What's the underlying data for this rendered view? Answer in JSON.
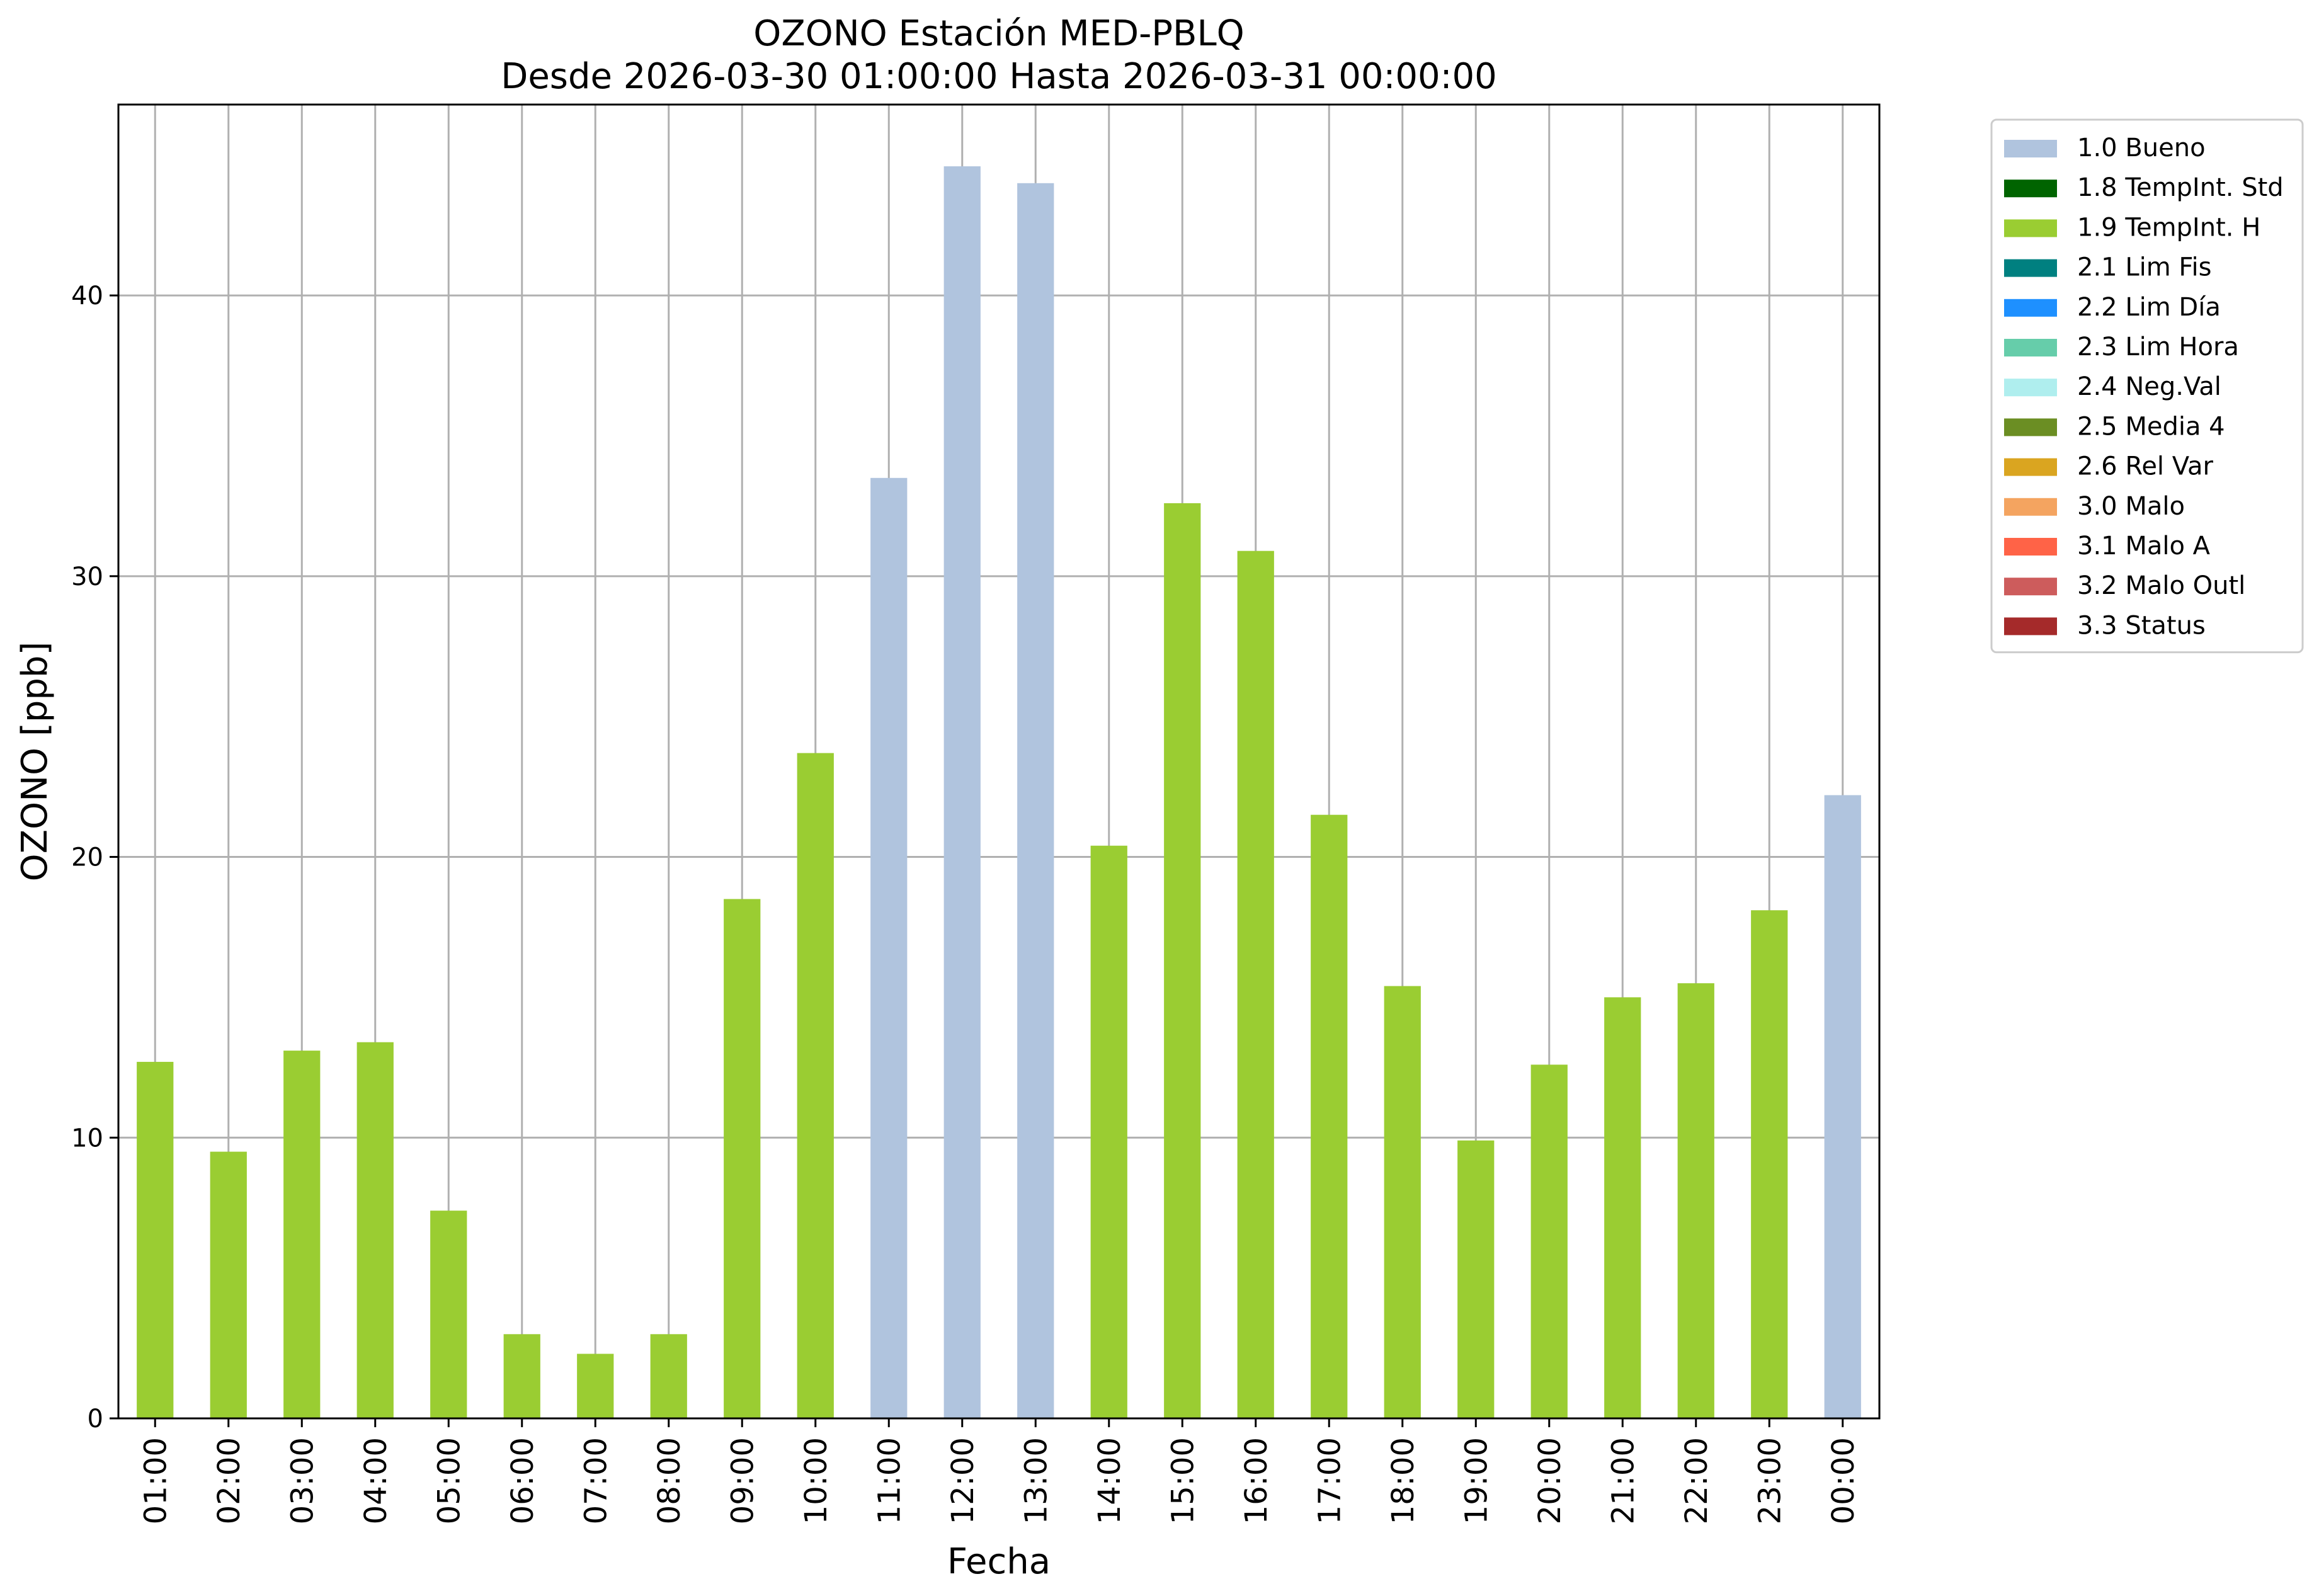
{
  "chart_data": {
    "type": "bar",
    "title": "OZONO Estación MED-PBLQ",
    "subtitle": "Desde 2026-03-30 01:00:00 Hasta 2026-03-31 00:00:00",
    "xlabel": "Fecha",
    "ylabel": "OZONO [ppb]",
    "ylim": [
      0,
      46.8
    ],
    "yticks": [
      0,
      10,
      20,
      30,
      40
    ],
    "grid": true,
    "legend_position": "outside-top-right",
    "categories": [
      "01:00",
      "02:00",
      "03:00",
      "04:00",
      "05:00",
      "06:00",
      "07:00",
      "08:00",
      "09:00",
      "10:00",
      "11:00",
      "12:00",
      "13:00",
      "14:00",
      "15:00",
      "16:00",
      "17:00",
      "18:00",
      "19:00",
      "20:00",
      "21:00",
      "22:00",
      "23:00",
      "00:00"
    ],
    "values": [
      12.7,
      9.5,
      13.1,
      13.4,
      7.4,
      3.0,
      2.3,
      3.0,
      18.5,
      23.7,
      33.5,
      44.6,
      44.0,
      20.4,
      32.6,
      30.9,
      21.5,
      15.4,
      9.9,
      12.6,
      15.0,
      15.5,
      18.1,
      22.2
    ],
    "flags": [
      "1.9 TempInt. H",
      "1.9 TempInt. H",
      "1.9 TempInt. H",
      "1.9 TempInt. H",
      "1.9 TempInt. H",
      "1.9 TempInt. H",
      "1.9 TempInt. H",
      "1.9 TempInt. H",
      "1.9 TempInt. H",
      "1.9 TempInt. H",
      "1.0 Bueno",
      "1.0 Bueno",
      "1.0 Bueno",
      "1.9 TempInt. H",
      "1.9 TempInt. H",
      "1.9 TempInt. H",
      "1.9 TempInt. H",
      "1.9 TempInt. H",
      "1.9 TempInt. H",
      "1.9 TempInt. H",
      "1.9 TempInt. H",
      "1.9 TempInt. H",
      "1.9 TempInt. H",
      "1.0 Bueno"
    ],
    "legend": [
      {
        "label": "1.0 Bueno",
        "color": "#b0c4de"
      },
      {
        "label": "1.8 TempInt. Std",
        "color": "#006400"
      },
      {
        "label": "1.9 TempInt. H",
        "color": "#9acd32"
      },
      {
        "label": "2.1 Lim Fis",
        "color": "#008080"
      },
      {
        "label": "2.2 Lim Día",
        "color": "#1e90ff"
      },
      {
        "label": "2.3 Lim Hora",
        "color": "#66cdaa"
      },
      {
        "label": "2.4 Neg.Val",
        "color": "#afeeee"
      },
      {
        "label": "2.5 Media 4",
        "color": "#6b8e23"
      },
      {
        "label": "2.6 Rel Var",
        "color": "#daa520"
      },
      {
        "label": "3.0 Malo",
        "color": "#f4a460"
      },
      {
        "label": "3.1 Malo A",
        "color": "#ff6347"
      },
      {
        "label": "3.2 Malo Outl",
        "color": "#cd5c5c"
      },
      {
        "label": "3.3 Status",
        "color": "#a52a2a"
      }
    ]
  }
}
